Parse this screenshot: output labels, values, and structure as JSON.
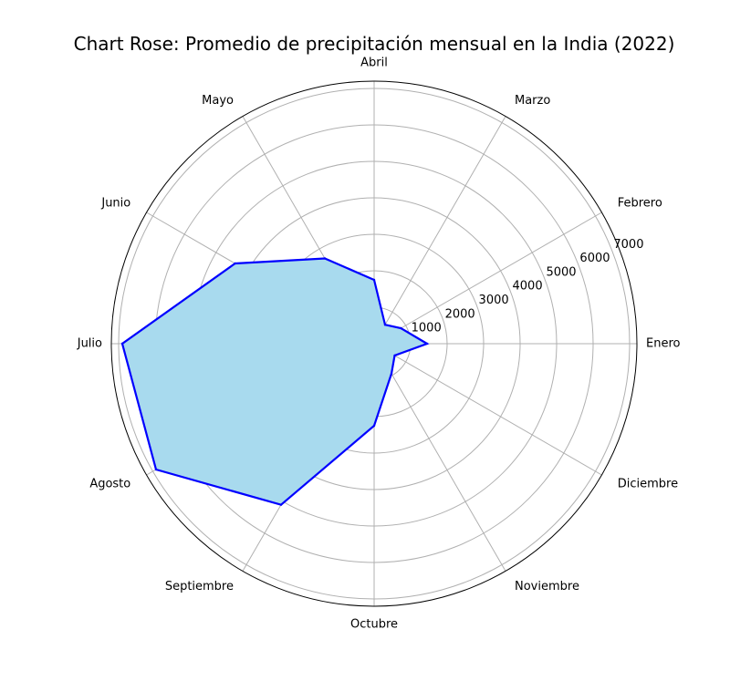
{
  "chart_data": {
    "type": "radar",
    "title": "Chart Rose: Promedio de precipitación mensual en la India (2022)",
    "categories": [
      "Enero",
      "Febrero",
      "Marzo",
      "Abril",
      "Mayo",
      "Junio",
      "Julio",
      "Agosto",
      "Septiembre",
      "Octubre",
      "Noviembre",
      "Diciembre"
    ],
    "values": [
      1450,
      850,
      600,
      1750,
      2700,
      4400,
      6900,
      6900,
      5100,
      2250,
      950,
      650
    ],
    "r_ticks": [
      1000,
      2000,
      3000,
      4000,
      5000,
      6000,
      7000
    ],
    "r_max": 7200,
    "grid": true,
    "line_color": "#0000ff",
    "fill_color": "#a8daee"
  }
}
